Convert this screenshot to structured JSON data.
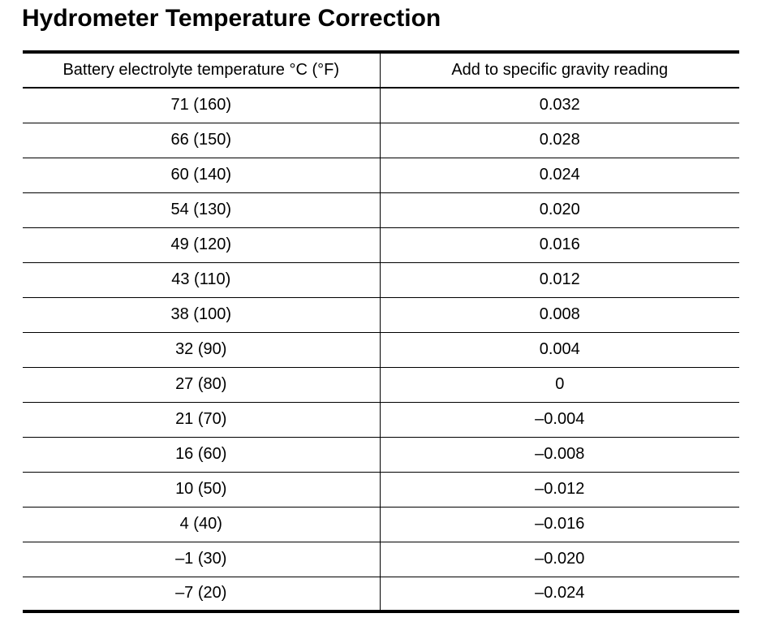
{
  "title": "Hydrometer Temperature Correction",
  "table": {
    "headers": [
      "Battery electrolyte temperature °C (°F)",
      "Add to specific gravity reading"
    ],
    "rows": [
      {
        "temperature": "71 (160)",
        "correction": "0.032"
      },
      {
        "temperature": "66 (150)",
        "correction": "0.028"
      },
      {
        "temperature": "60 (140)",
        "correction": "0.024"
      },
      {
        "temperature": "54 (130)",
        "correction": "0.020"
      },
      {
        "temperature": "49 (120)",
        "correction": "0.016"
      },
      {
        "temperature": "43 (110)",
        "correction": "0.012"
      },
      {
        "temperature": "38 (100)",
        "correction": "0.008"
      },
      {
        "temperature": "32 (90)",
        "correction": "0.004"
      },
      {
        "temperature": "27 (80)",
        "correction": "0"
      },
      {
        "temperature": "21 (70)",
        "correction": "–0.004"
      },
      {
        "temperature": "16 (60)",
        "correction": "–0.008"
      },
      {
        "temperature": "10 (50)",
        "correction": "–0.012"
      },
      {
        "temperature": "4 (40)",
        "correction": "–0.016"
      },
      {
        "temperature": "–1 (30)",
        "correction": "–0.020"
      },
      {
        "temperature": "–7 (20)",
        "correction": "–0.024"
      }
    ]
  }
}
